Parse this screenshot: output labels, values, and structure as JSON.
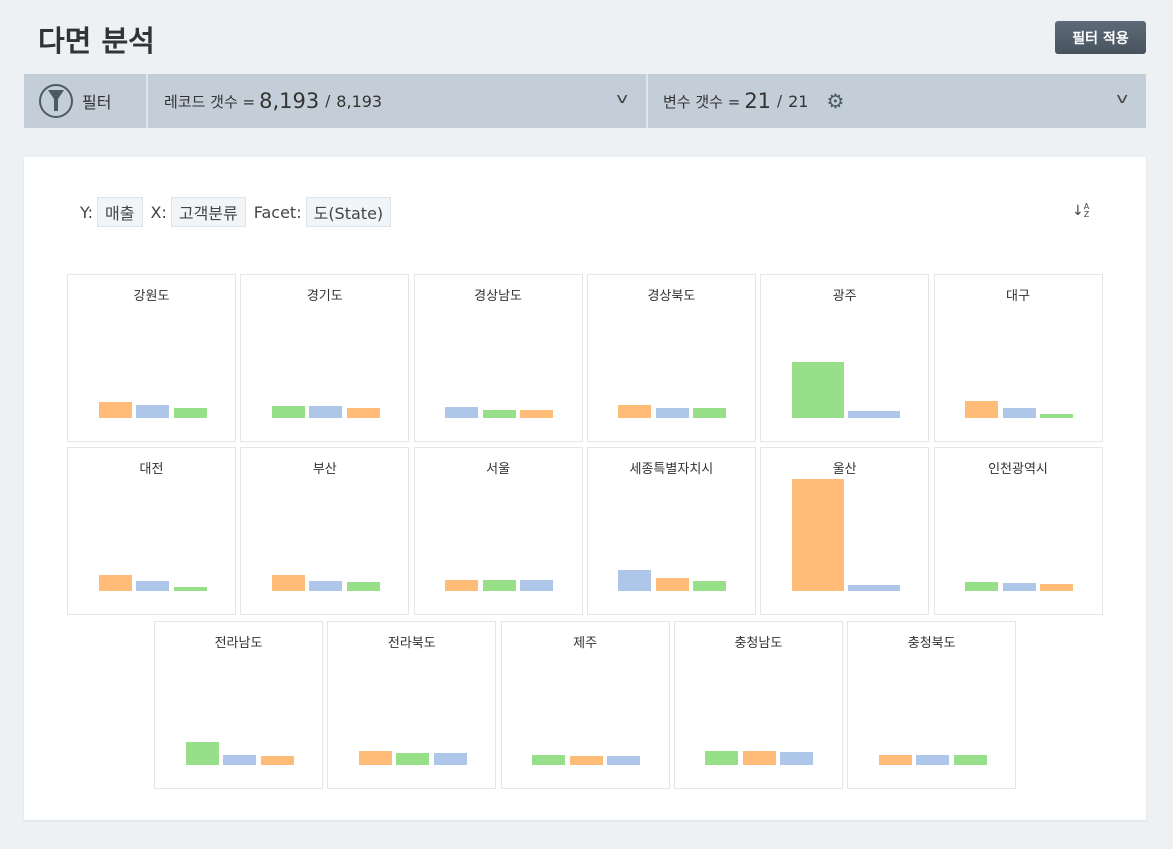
{
  "page": {
    "title": "다면 분석",
    "apply_button": "필터 적용"
  },
  "filter_bar": {
    "label": "필터",
    "icon": "funnel-icon",
    "records": {
      "label": "레코드 갯수 =",
      "current": "8,193",
      "separator": "/",
      "total": "8,193"
    },
    "variables": {
      "label": "변수 갯수 =",
      "current": "21",
      "separator": "/",
      "total": "21",
      "icon": "gear-icon"
    }
  },
  "encoding": {
    "y_label": "Y:",
    "y_value": "매출",
    "x_label": "X:",
    "x_value": "고객분류",
    "facet_label": "Facet:",
    "facet_value": "도(State)",
    "sort_icon": "sort-alpha-icon"
  },
  "colors": {
    "orange": "#ffbb78",
    "blue": "#aec7e8",
    "green": "#98df8a"
  },
  "chart_data": {
    "type": "bar",
    "note_units": "relative",
    "facets": [
      {
        "name": "강원도",
        "bars": [
          [
            "orange",
            16
          ],
          [
            "blue",
            13
          ],
          [
            "green",
            10
          ]
        ]
      },
      {
        "name": "경기도",
        "bars": [
          [
            "green",
            12
          ],
          [
            "blue",
            12
          ],
          [
            "orange",
            10
          ]
        ]
      },
      {
        "name": "경상남도",
        "bars": [
          [
            "blue",
            11
          ],
          [
            "green",
            8
          ],
          [
            "orange",
            8
          ]
        ]
      },
      {
        "name": "경상북도",
        "bars": [
          [
            "orange",
            13
          ],
          [
            "blue",
            10
          ],
          [
            "green",
            10
          ]
        ]
      },
      {
        "name": "광주",
        "bars": [
          [
            "green",
            56
          ],
          [
            "blue",
            7
          ]
        ]
      },
      {
        "name": "대구",
        "bars": [
          [
            "orange",
            17
          ],
          [
            "blue",
            10
          ],
          [
            "green",
            4
          ]
        ]
      },
      {
        "name": "대전",
        "bars": [
          [
            "orange",
            16
          ],
          [
            "blue",
            10
          ],
          [
            "green",
            4
          ]
        ]
      },
      {
        "name": "부산",
        "bars": [
          [
            "orange",
            16
          ],
          [
            "blue",
            10
          ],
          [
            "green",
            9
          ]
        ]
      },
      {
        "name": "서울",
        "bars": [
          [
            "orange",
            11
          ],
          [
            "green",
            11
          ],
          [
            "blue",
            11
          ]
        ]
      },
      {
        "name": "세종특별자치시",
        "bars": [
          [
            "blue",
            21
          ],
          [
            "orange",
            13
          ],
          [
            "green",
            10
          ]
        ]
      },
      {
        "name": "울산",
        "bars": [
          [
            "orange",
            112
          ],
          [
            "blue",
            6
          ]
        ]
      },
      {
        "name": "인천광역시",
        "bars": [
          [
            "green",
            9
          ],
          [
            "blue",
            8
          ],
          [
            "orange",
            7
          ]
        ]
      },
      {
        "name": "전라남도",
        "bars": [
          [
            "green",
            23
          ],
          [
            "blue",
            10
          ],
          [
            "orange",
            9
          ]
        ]
      },
      {
        "name": "전라북도",
        "bars": [
          [
            "orange",
            14
          ],
          [
            "green",
            12
          ],
          [
            "blue",
            12
          ]
        ]
      },
      {
        "name": "제주",
        "bars": [
          [
            "green",
            10
          ],
          [
            "orange",
            9
          ],
          [
            "blue",
            9
          ]
        ]
      },
      {
        "name": "충청남도",
        "bars": [
          [
            "green",
            14
          ],
          [
            "orange",
            14
          ],
          [
            "blue",
            13
          ]
        ]
      },
      {
        "name": "충청북도",
        "bars": [
          [
            "orange",
            10
          ],
          [
            "blue",
            10
          ],
          [
            "green",
            10
          ]
        ]
      }
    ]
  }
}
